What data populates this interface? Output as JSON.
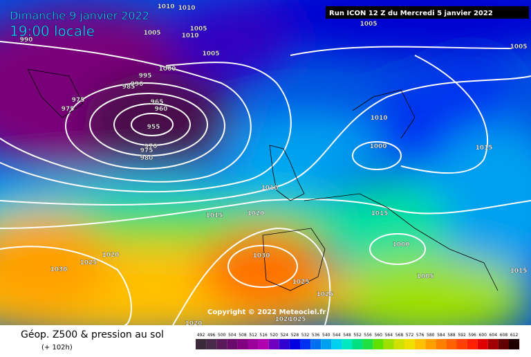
{
  "header": {
    "date": "Dimanche 9 janvier 2022",
    "time": "19:00 locale",
    "run": "Run ICON 12 Z du Mercredi 5 janvier 2022"
  },
  "map": {
    "copyright": "Copyright © 2022 Meteociel.fr",
    "isobar_labels": [
      "990",
      "1010",
      "1010",
      "1005",
      "1005",
      "1010",
      "1005",
      "1000",
      "995",
      "990",
      "985",
      "975",
      "975",
      "965",
      "960",
      "955",
      "970",
      "975",
      "980",
      "1005",
      "1005",
      "1010",
      "1000",
      "1015",
      "1010",
      "1020",
      "1015",
      "1015",
      "1000",
      "1005",
      "1015",
      "1030",
      "1030",
      "1025",
      "1020",
      "1025",
      "1025",
      "1020",
      "1020",
      "1025"
    ]
  },
  "legend": {
    "title": "Géop. Z500 & pression au sol",
    "lead": "(+ 102h)",
    "scale": {
      "values": [
        492,
        496,
        500,
        504,
        508,
        512,
        516,
        520,
        524,
        528,
        532,
        536,
        540,
        544,
        548,
        552,
        556,
        560,
        564,
        568,
        572,
        576,
        580,
        584,
        588,
        592,
        596,
        600,
        604,
        608,
        612
      ],
      "colors": [
        "#3a2a3a",
        "#4a2a4a",
        "#5a1a5a",
        "#6a0a6a",
        "#800080",
        "#9a009a",
        "#b000b0",
        "#7000c0",
        "#3000d0",
        "#0000e0",
        "#0030f0",
        "#0070f0",
        "#00a0f0",
        "#00d0f0",
        "#00e8c0",
        "#00e080",
        "#20e040",
        "#60e000",
        "#a0e000",
        "#d0e000",
        "#f0e000",
        "#ffc000",
        "#ffa000",
        "#ff8000",
        "#ff6000",
        "#ff4000",
        "#ff2000",
        "#e00000",
        "#a00000",
        "#600000",
        "#200000"
      ]
    }
  }
}
